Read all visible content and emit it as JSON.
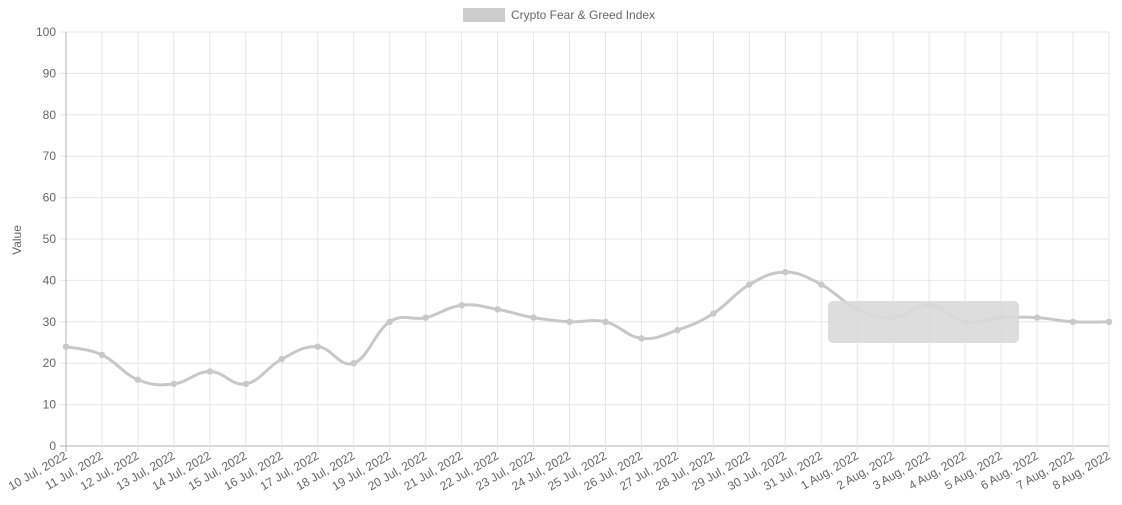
{
  "chart_data": {
    "type": "line",
    "title": "",
    "xlabel": "",
    "ylabel": "Value",
    "ylim": [
      0,
      100
    ],
    "y_ticks": [
      "0",
      "10",
      "20",
      "30",
      "40",
      "50",
      "60",
      "70",
      "80",
      "90",
      "100"
    ],
    "grid": true,
    "legend_position": "top-center",
    "categories": [
      "10 Jul, 2022",
      "11 Jul, 2022",
      "12 Jul, 2022",
      "13 Jul, 2022",
      "14 Jul, 2022",
      "15 Jul, 2022",
      "16 Jul, 2022",
      "17 Jul, 2022",
      "18 Jul, 2022",
      "19 Jul, 2022",
      "20 Jul, 2022",
      "21 Jul, 2022",
      "22 Jul, 2022",
      "23 Jul, 2022",
      "24 Jul, 2022",
      "25 Jul, 2022",
      "26 Jul, 2022",
      "27 Jul, 2022",
      "28 Jul, 2022",
      "29 Jul, 2022",
      "30 Jul, 2022",
      "31 Jul, 2022",
      "1 Aug, 2022",
      "2 Aug, 2022",
      "3 Aug, 2022",
      "4 Aug, 2022",
      "5 Aug, 2022",
      "6 Aug, 2022",
      "7 Aug, 2022",
      "8 Aug, 2022"
    ],
    "series": [
      {
        "name": "Crypto Fear & Greed Index",
        "color": "#c8c8c8",
        "values": [
          24,
          22,
          16,
          15,
          18,
          15,
          21,
          24,
          20,
          30,
          31,
          34,
          33,
          31,
          30,
          30,
          26,
          28,
          32,
          39,
          42,
          39,
          33,
          31,
          34,
          30,
          31,
          31,
          30,
          30
        ]
      }
    ],
    "colors": {
      "grid": "#e6e6e6",
      "axis": "#b0b0b0",
      "text": "#666666",
      "tooltip": "#d9d9d9"
    }
  }
}
